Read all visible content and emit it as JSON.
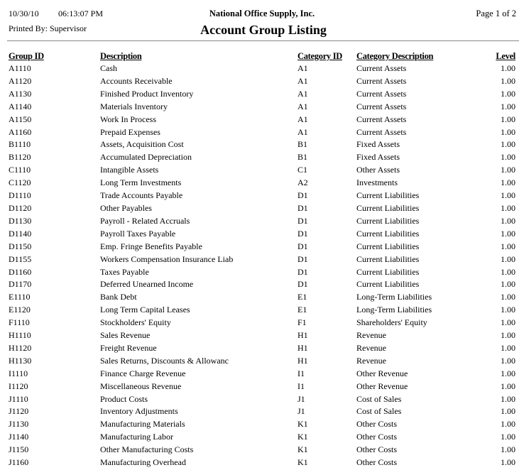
{
  "header": {
    "date": "10/30/10",
    "time": "06:13:07 PM",
    "company": "National Office Supply, Inc.",
    "page": "Page 1 of  2",
    "printed_by": "Printed By: Supervisor",
    "title": "Account Group Listing"
  },
  "columns": [
    "Group ID",
    "Description",
    "Category ID",
    "Category Description",
    "Level"
  ],
  "rows": [
    [
      "A1110",
      "Cash",
      "A1",
      "Current Assets",
      "1.00"
    ],
    [
      "A1120",
      "Accounts Receivable",
      "A1",
      "Current Assets",
      "1.00"
    ],
    [
      "A1130",
      "Finished Product Inventory",
      "A1",
      "Current Assets",
      "1.00"
    ],
    [
      "A1140",
      "Materials Inventory",
      "A1",
      "Current Assets",
      "1.00"
    ],
    [
      "A1150",
      "Work In Process",
      "A1",
      "Current Assets",
      "1.00"
    ],
    [
      "A1160",
      "Prepaid Expenses",
      "A1",
      "Current Assets",
      "1.00"
    ],
    [
      "B1110",
      "Assets, Acquisition Cost",
      "B1",
      "Fixed Assets",
      "1.00"
    ],
    [
      "B1120",
      "Accumulated Depreciation",
      "B1",
      "Fixed Assets",
      "1.00"
    ],
    [
      "C1110",
      "Intangible Assets",
      "C1",
      "Other Assets",
      "1.00"
    ],
    [
      "C1120",
      "Long Term Investments",
      "A2",
      "Investments",
      "1.00"
    ],
    [
      "D1110",
      "Trade Accounts Payable",
      "D1",
      "Current Liabilities",
      "1.00"
    ],
    [
      "D1120",
      "Other Payables",
      "D1",
      "Current Liabilities",
      "1.00"
    ],
    [
      "D1130",
      "Payroll - Related Accruals",
      "D1",
      "Current Liabilities",
      "1.00"
    ],
    [
      "D1140",
      "Payroll Taxes Payable",
      "D1",
      "Current Liabilities",
      "1.00"
    ],
    [
      "D1150",
      "Emp. Fringe Benefits Payable",
      "D1",
      "Current Liabilities",
      "1.00"
    ],
    [
      "D1155",
      "Workers Compensation Insurance Liab",
      "D1",
      "Current Liabilities",
      "1.00"
    ],
    [
      "D1160",
      "Taxes Payable",
      "D1",
      "Current Liabilities",
      "1.00"
    ],
    [
      "D1170",
      "Deferred Unearned Income",
      "D1",
      "Current Liabilities",
      "1.00"
    ],
    [
      "E1110",
      "Bank Debt",
      "E1",
      "Long-Term Liabilities",
      "1.00"
    ],
    [
      "E1120",
      "Long Term Capital Leases",
      "E1",
      "Long-Term Liabilities",
      "1.00"
    ],
    [
      "F1110",
      "Stockholders' Equity",
      "F1",
      "Shareholders' Equity",
      "1.00"
    ],
    [
      "H1110",
      "Sales Revenue",
      "H1",
      "Revenue",
      "1.00"
    ],
    [
      "H1120",
      "Freight Revenue",
      "H1",
      "Revenue",
      "1.00"
    ],
    [
      "H1130",
      "Sales Returns, Discounts & Allowanc",
      "H1",
      "Revenue",
      "1.00"
    ],
    [
      "I1110",
      "Finance Charge Revenue",
      "I1",
      "Other Revenue",
      "1.00"
    ],
    [
      "I1120",
      "Miscellaneous Revenue",
      "I1",
      "Other Revenue",
      "1.00"
    ],
    [
      "J1110",
      "Product Costs",
      "J1",
      "Cost of Sales",
      "1.00"
    ],
    [
      "J1120",
      "Inventory Adjustments",
      "J1",
      "Cost of Sales",
      "1.00"
    ],
    [
      "J1130",
      "Manufacturing Materials",
      "K1",
      "Other Costs",
      "1.00"
    ],
    [
      "J1140",
      "Manufacturing Labor",
      "K1",
      "Other Costs",
      "1.00"
    ],
    [
      "J1150",
      "Other Manufacturing Costs",
      "K1",
      "Other Costs",
      "1.00"
    ],
    [
      "J1160",
      "Manufacturing Overhead",
      "K1",
      "Other Costs",
      "1.00"
    ]
  ]
}
